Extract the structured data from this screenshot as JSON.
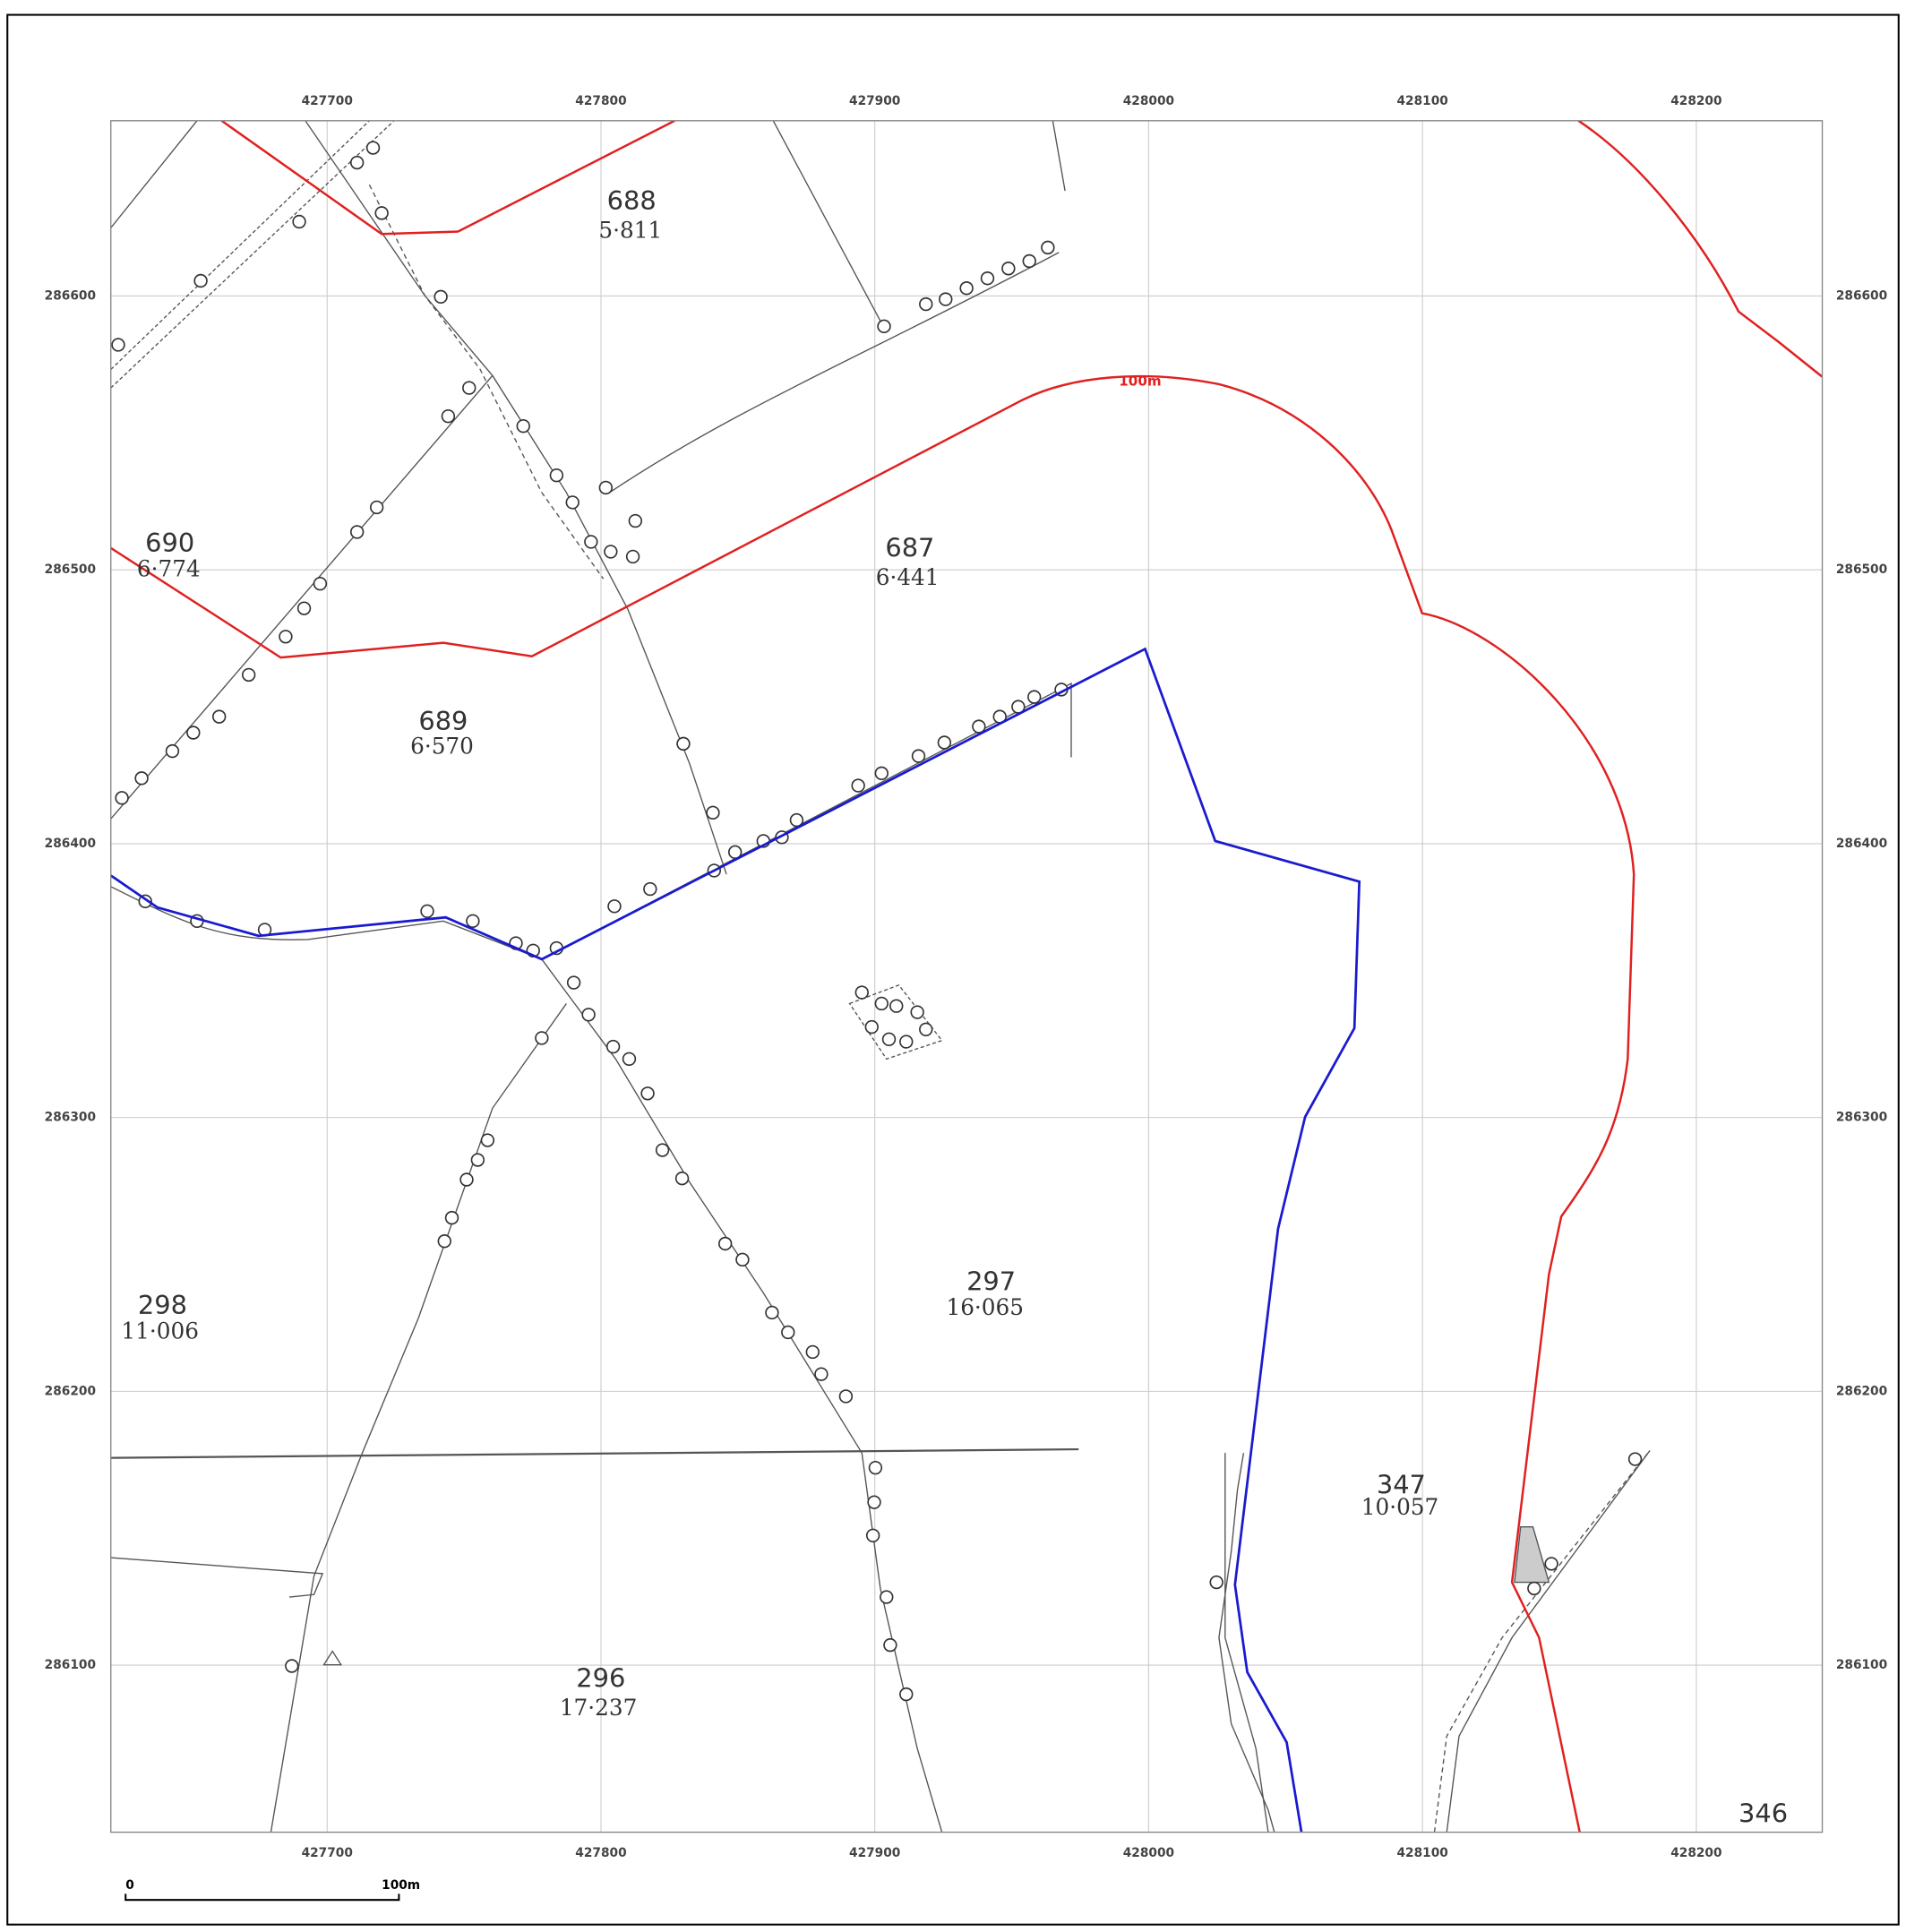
{
  "map": {
    "grid": {
      "xlim": [
        427621,
        428246
      ],
      "ylim": [
        286039,
        286664
      ],
      "xticks": [
        427700,
        427800,
        427900,
        428000,
        428100,
        428200
      ],
      "yticks": [
        286100,
        286200,
        286300,
        286400,
        286500,
        286600
      ]
    },
    "parcels": [
      {
        "number": "688",
        "area": "5·811"
      },
      {
        "number": "690",
        "area": "6·774"
      },
      {
        "number": "687",
        "area": "6·441"
      },
      {
        "number": "689",
        "area": "6·570"
      },
      {
        "number": "298",
        "area": "11·006"
      },
      {
        "number": "297",
        "area": "16·065"
      },
      {
        "number": "347",
        "area": "10·057"
      },
      {
        "number": "296",
        "area": "17·237"
      },
      {
        "number": "346"
      }
    ],
    "contour_label": "100m",
    "scale_bar": {
      "start": "0",
      "end": "100m"
    }
  }
}
